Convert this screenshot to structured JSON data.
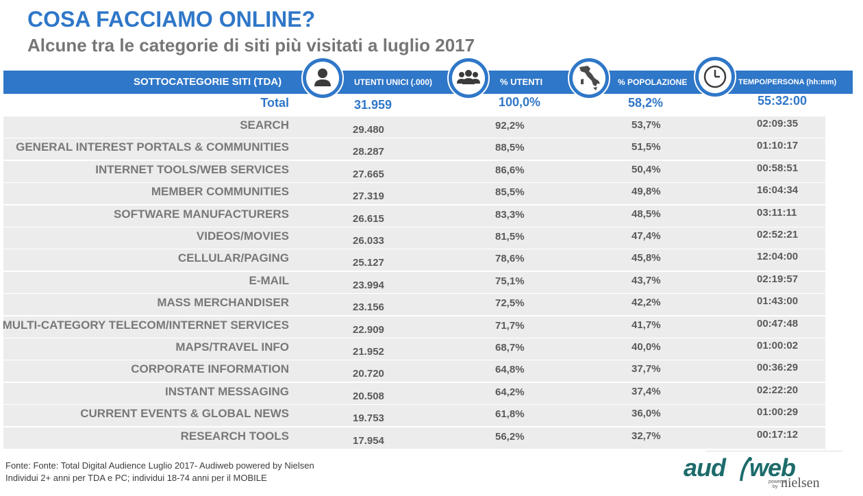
{
  "title": "COSA FACCIAMO ONLINE?",
  "subtitle": "Alcune tra le categorie di siti più visitati a luglio 2017",
  "colors": {
    "accent": "#2f77c8",
    "row_shade": "#ececec",
    "category_text": "#787878",
    "logo": "#1d6b6b"
  },
  "icons": [
    "person-icon",
    "group-icon",
    "italy-map-icon",
    "clock-icon"
  ],
  "chart_data": {
    "type": "table",
    "columns": [
      "SOTTOCATEGORIE SITI  (TDA)",
      "UTENTI UNICI (.000)",
      "% UTENTI",
      "% POPOLAZIONE",
      "TEMPO/PERSONA (hh:mm)"
    ],
    "total": {
      "label": "Total",
      "utenti": "31.959",
      "pct_utenti": "100,0%",
      "pct_pop": "58,2%",
      "tempo": "55:32:00"
    },
    "rows": [
      {
        "label": "SEARCH",
        "utenti": "29.480",
        "pct_utenti": "92,2%",
        "pct_pop": "53,7%",
        "tempo": "02:09:35"
      },
      {
        "label": "GENERAL INTEREST PORTALS & COMMUNITIES",
        "utenti": "28.287",
        "pct_utenti": "88,5%",
        "pct_pop": "51,5%",
        "tempo": "01:10:17"
      },
      {
        "label": "INTERNET TOOLS/WEB SERVICES",
        "utenti": "27.665",
        "pct_utenti": "86,6%",
        "pct_pop": "50,4%",
        "tempo": "00:58:51"
      },
      {
        "label": "MEMBER COMMUNITIES",
        "utenti": "27.319",
        "pct_utenti": "85,5%",
        "pct_pop": "49,8%",
        "tempo": "16:04:34"
      },
      {
        "label": "SOFTWARE MANUFACTURERS",
        "utenti": "26.615",
        "pct_utenti": "83,3%",
        "pct_pop": "48,5%",
        "tempo": "03:11:11"
      },
      {
        "label": "VIDEOS/MOVIES",
        "utenti": "26.033",
        "pct_utenti": "81,5%",
        "pct_pop": "47,4%",
        "tempo": "02:52:21"
      },
      {
        "label": "CELLULAR/PAGING",
        "utenti": "25.127",
        "pct_utenti": "78,6%",
        "pct_pop": "45,8%",
        "tempo": "12:04:00"
      },
      {
        "label": "E-MAIL",
        "utenti": "23.994",
        "pct_utenti": "75,1%",
        "pct_pop": "43,7%",
        "tempo": "02:19:57"
      },
      {
        "label": "MASS MERCHANDISER",
        "utenti": "23.156",
        "pct_utenti": "72,5%",
        "pct_pop": "42,2%",
        "tempo": "01:43:00"
      },
      {
        "label": "MULTI-CATEGORY TELECOM/INTERNET SERVICES",
        "utenti": "22.909",
        "pct_utenti": "71,7%",
        "pct_pop": "41,7%",
        "tempo": "00:47:48"
      },
      {
        "label": "MAPS/TRAVEL INFO",
        "utenti": "21.952",
        "pct_utenti": "68,7%",
        "pct_pop": "40,0%",
        "tempo": "01:00:02"
      },
      {
        "label": "CORPORATE INFORMATION",
        "utenti": "20.720",
        "pct_utenti": "64,8%",
        "pct_pop": "37,7%",
        "tempo": "00:36:29"
      },
      {
        "label": "INSTANT MESSAGING",
        "utenti": "20.508",
        "pct_utenti": "64,2%",
        "pct_pop": "37,4%",
        "tempo": "02:22:20"
      },
      {
        "label": "CURRENT EVENTS & GLOBAL NEWS",
        "utenti": "19.753",
        "pct_utenti": "61,8%",
        "pct_pop": "36,0%",
        "tempo": "01:00:29"
      },
      {
        "label": "RESEARCH TOOLS",
        "utenti": "17.954",
        "pct_utenti": "56,2%",
        "pct_pop": "32,7%",
        "tempo": "00:17:12"
      }
    ]
  },
  "footnote": {
    "line1": "Fonte: Fonte: Total Digital Audience Luglio 2017- Audiweb powered by Nielsen",
    "line2": "Individui 2+ anni per TDA e PC; individui 18-74 anni per il MOBILE"
  },
  "logo": {
    "audi": "aud",
    "web": "web",
    "powered": "powered",
    "by": "by",
    "nielsen": "nielsen"
  }
}
